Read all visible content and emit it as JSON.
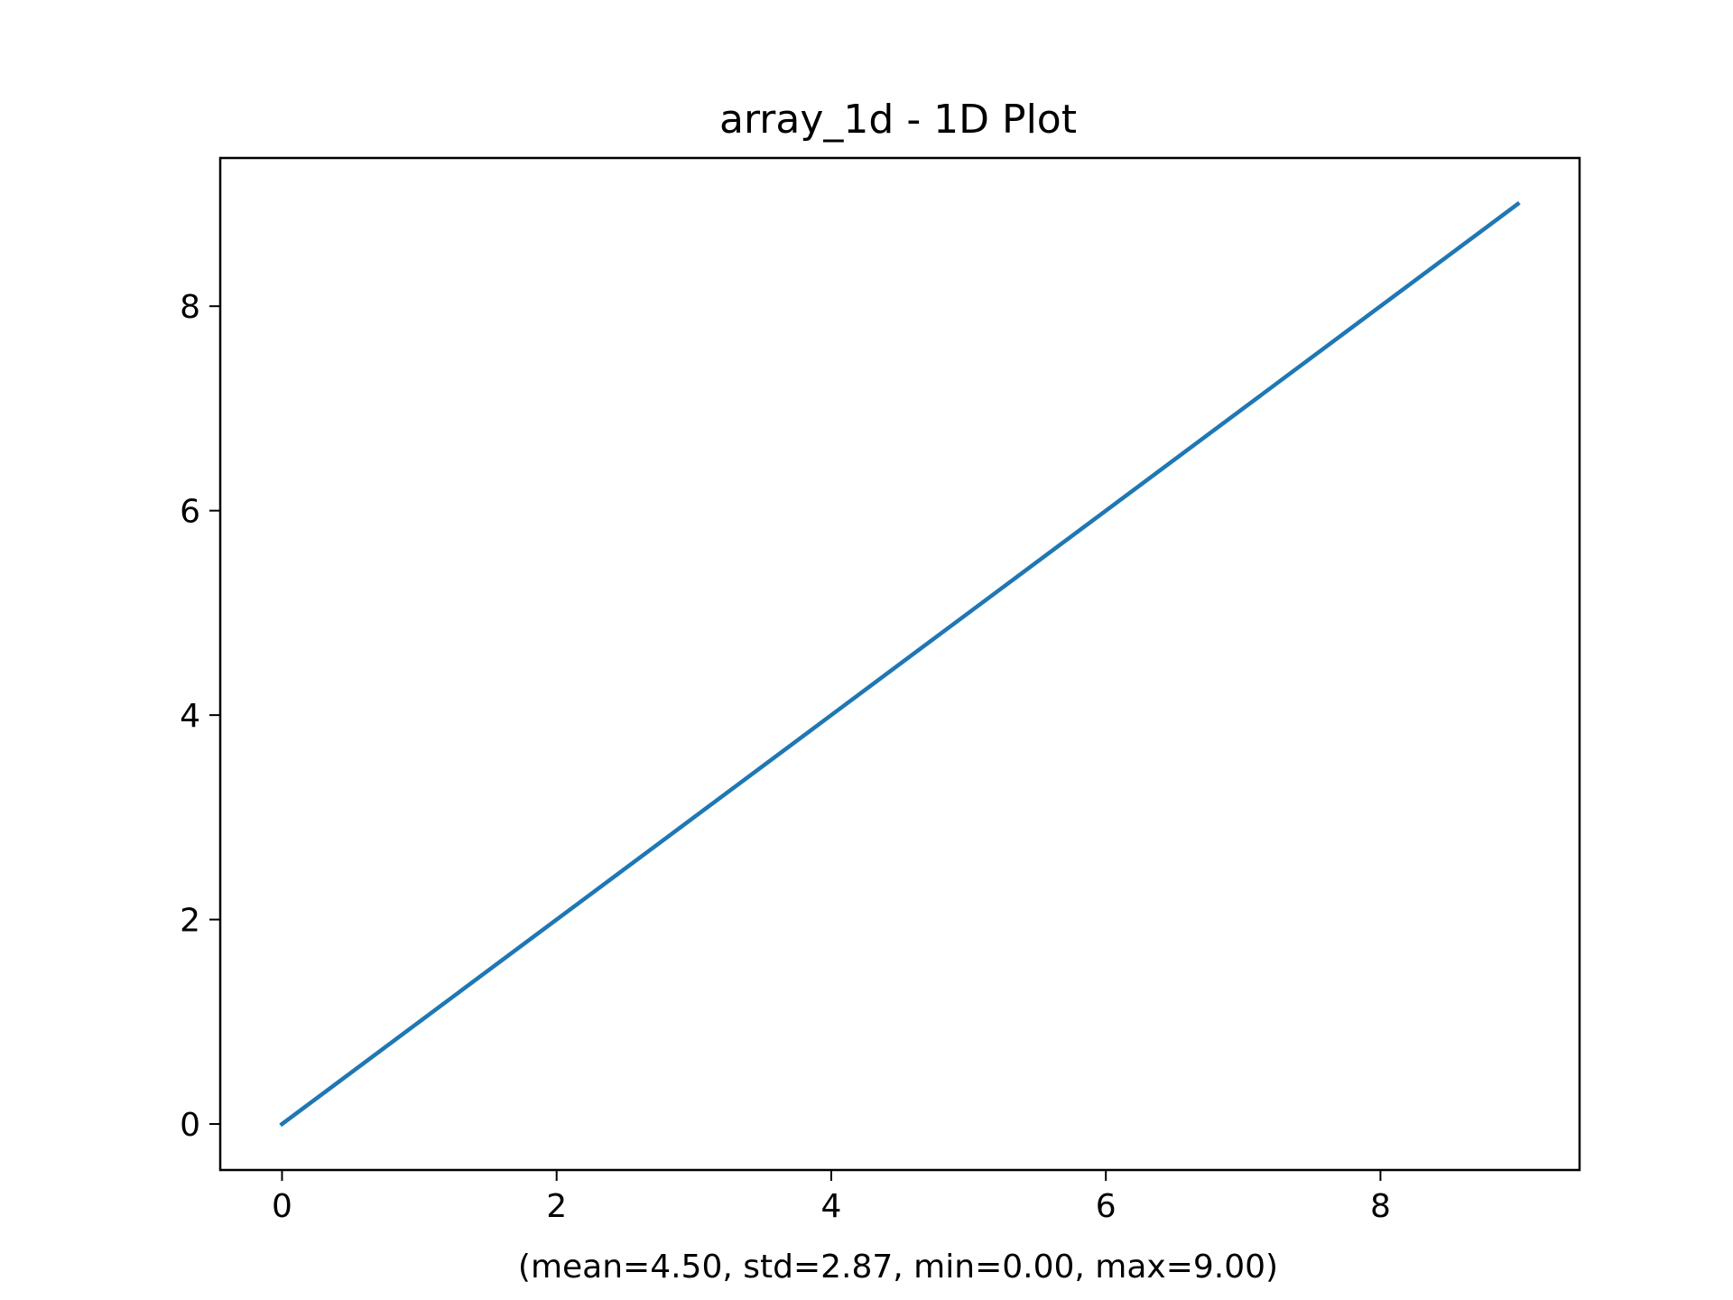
{
  "chart_data": {
    "type": "line",
    "title": "array_1d - 1D Plot",
    "xlabel": "(mean=4.50, std=2.87, min=0.00, max=9.00)",
    "ylabel": "",
    "x": [
      0,
      1,
      2,
      3,
      4,
      5,
      6,
      7,
      8,
      9
    ],
    "series": [
      {
        "values": [
          0,
          1,
          2,
          3,
          4,
          5,
          6,
          7,
          8,
          9
        ],
        "color": "#1f77b4"
      }
    ],
    "xlim": [
      -0.45,
      9.45
    ],
    "ylim": [
      -0.45,
      9.45
    ],
    "xticks": [
      0,
      2,
      4,
      6,
      8
    ],
    "yticks": [
      0,
      2,
      4,
      6,
      8
    ],
    "xtick_labels": [
      "0",
      "2",
      "4",
      "6",
      "8"
    ],
    "ytick_labels": [
      "0",
      "2",
      "4",
      "6",
      "8"
    ],
    "grid": false,
    "legend": "none"
  }
}
